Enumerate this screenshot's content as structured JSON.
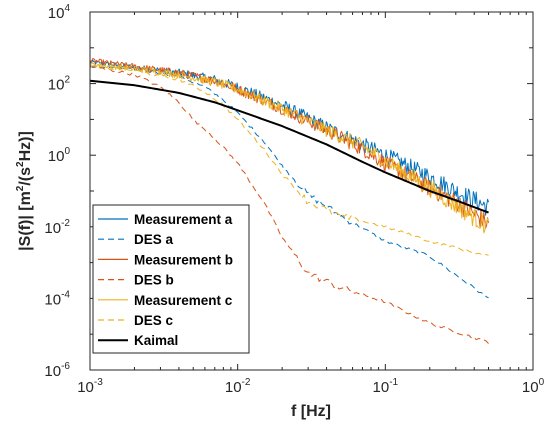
{
  "chart_data": {
    "type": "line",
    "title": "",
    "xlabel": "f [Hz]",
    "ylabel_parts": [
      "|S(f)| [m",
      "2",
      "/(s",
      "2",
      "Hz)]"
    ],
    "x_scale": "log",
    "y_scale": "log",
    "xlim": [
      0.001,
      1
    ],
    "ylim": [
      1e-06,
      10000
    ],
    "x_ticks": [
      {
        "value": 0.001,
        "base": "10",
        "exp": "-3"
      },
      {
        "value": 0.01,
        "base": "10",
        "exp": "-2"
      },
      {
        "value": 0.1,
        "base": "10",
        "exp": "-1"
      },
      {
        "value": 1,
        "base": "10",
        "exp": "0"
      }
    ],
    "y_ticks": [
      {
        "value": 1e-06,
        "base": "10",
        "exp": "-6"
      },
      {
        "value": 0.0001,
        "base": "10",
        "exp": "-4"
      },
      {
        "value": 0.01,
        "base": "10",
        "exp": "-2"
      },
      {
        "value": 1,
        "base": "10",
        "exp": "0"
      },
      {
        "value": 100,
        "base": "10",
        "exp": "2"
      },
      {
        "value": 10000,
        "base": "10",
        "exp": "4"
      }
    ],
    "grid": false,
    "legend_position": "bottom-left",
    "series": [
      {
        "name": "Measurement a",
        "color": "#0072BD",
        "dash": "solid",
        "noise": true,
        "x": [
          0.001,
          0.002,
          0.004,
          0.007,
          0.01,
          0.02,
          0.04,
          0.07,
          0.1,
          0.2,
          0.3,
          0.5
        ],
        "y": [
          400,
          280,
          200,
          130,
          80,
          25,
          6,
          2.0,
          1.0,
          0.25,
          0.1,
          0.035
        ]
      },
      {
        "name": "DES a",
        "color": "#0072BD",
        "dash": "dashed",
        "noise": false,
        "x": [
          0.001,
          0.002,
          0.004,
          0.006,
          0.008,
          0.01,
          0.015,
          0.02,
          0.03,
          0.05,
          0.1,
          0.2,
          0.5
        ],
        "y": [
          300,
          260,
          160,
          80,
          35,
          15,
          2.5,
          0.5,
          0.08,
          0.02,
          0.004,
          0.0015,
          0.0001
        ]
      },
      {
        "name": "Measurement b",
        "color": "#D95319",
        "dash": "solid",
        "noise": true,
        "x": [
          0.001,
          0.002,
          0.004,
          0.007,
          0.01,
          0.02,
          0.04,
          0.07,
          0.1,
          0.2,
          0.3,
          0.5
        ],
        "y": [
          450,
          300,
          200,
          120,
          70,
          20,
          5,
          1.5,
          0.6,
          0.12,
          0.05,
          0.012
        ]
      },
      {
        "name": "DES b",
        "color": "#D95319",
        "dash": "dashed",
        "noise": false,
        "x": [
          0.001,
          0.002,
          0.003,
          0.004,
          0.005,
          0.007,
          0.01,
          0.015,
          0.02,
          0.03,
          0.05,
          0.1,
          0.2,
          0.5
        ],
        "y": [
          300,
          180,
          80,
          30,
          10,
          3,
          0.6,
          0.05,
          0.005,
          0.0005,
          0.0002,
          8e-05,
          2e-05,
          6e-06
        ]
      },
      {
        "name": "Measurement c",
        "color": "#EDB120",
        "dash": "solid",
        "noise": true,
        "x": [
          0.001,
          0.002,
          0.004,
          0.007,
          0.01,
          0.02,
          0.04,
          0.07,
          0.1,
          0.2,
          0.3,
          0.5
        ],
        "y": [
          350,
          260,
          180,
          110,
          70,
          20,
          5,
          1.8,
          0.7,
          0.12,
          0.04,
          0.01
        ]
      },
      {
        "name": "DES c",
        "color": "#EDB120",
        "dash": "dashed",
        "noise": false,
        "x": [
          0.001,
          0.002,
          0.004,
          0.006,
          0.008,
          0.01,
          0.015,
          0.02,
          0.03,
          0.05,
          0.1,
          0.2,
          0.5
        ],
        "y": [
          300,
          230,
          130,
          60,
          25,
          10,
          1.5,
          0.3,
          0.05,
          0.02,
          0.01,
          0.004,
          0.0015
        ]
      },
      {
        "name": "Kaimal",
        "color": "#000000",
        "dash": "solid",
        "noise": false,
        "x": [
          0.001,
          0.002,
          0.004,
          0.007,
          0.01,
          0.02,
          0.04,
          0.07,
          0.1,
          0.2,
          0.3,
          0.5
        ],
        "y": [
          120,
          90,
          55,
          30,
          18,
          6.5,
          2.0,
          0.65,
          0.33,
          0.1,
          0.055,
          0.025
        ]
      }
    ]
  }
}
